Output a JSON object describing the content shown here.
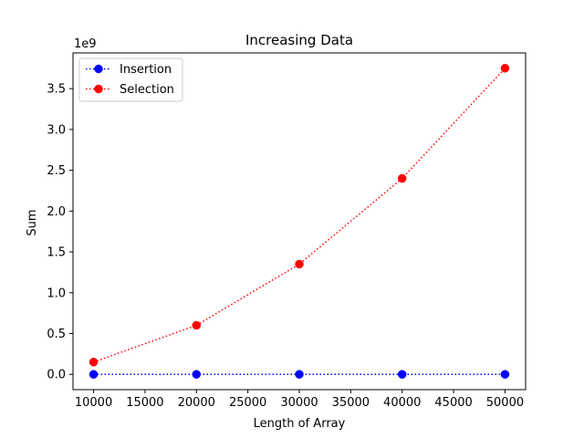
{
  "chart_data": {
    "type": "line",
    "title": "Increasing Data",
    "xlabel": "Length of Array",
    "ylabel": "Sum",
    "y_offset_label": "1e9",
    "x": [
      10000,
      20000,
      30000,
      40000,
      50000
    ],
    "xlim": [
      8000,
      52000
    ],
    "ylim": [
      -0.1875,
      3.9375
    ],
    "y_scale_factor": 1000000000,
    "x_ticks": [
      10000,
      15000,
      20000,
      25000,
      30000,
      35000,
      40000,
      45000,
      50000
    ],
    "x_tick_labels": [
      "10000",
      "15000",
      "20000",
      "25000",
      "30000",
      "35000",
      "40000",
      "45000",
      "50000"
    ],
    "y_ticks": [
      0.0,
      0.5,
      1.0,
      1.5,
      2.0,
      2.5,
      3.0,
      3.5
    ],
    "y_tick_labels": [
      "0.0",
      "0.5",
      "1.0",
      "1.5",
      "2.0",
      "2.5",
      "3.0",
      "3.5"
    ],
    "grid": false,
    "legend_position": "upper-left",
    "series": [
      {
        "name": "Insertion",
        "values": [
          0.0,
          0.0,
          0.0,
          0.0,
          0.0
        ],
        "color": "#0000ff",
        "line_style": "dotted",
        "marker": "circle"
      },
      {
        "name": "Selection",
        "values": [
          0.15,
          0.6,
          1.35,
          2.4,
          3.75
        ],
        "color": "#ff0000",
        "line_style": "dotted",
        "marker": "circle"
      }
    ]
  }
}
